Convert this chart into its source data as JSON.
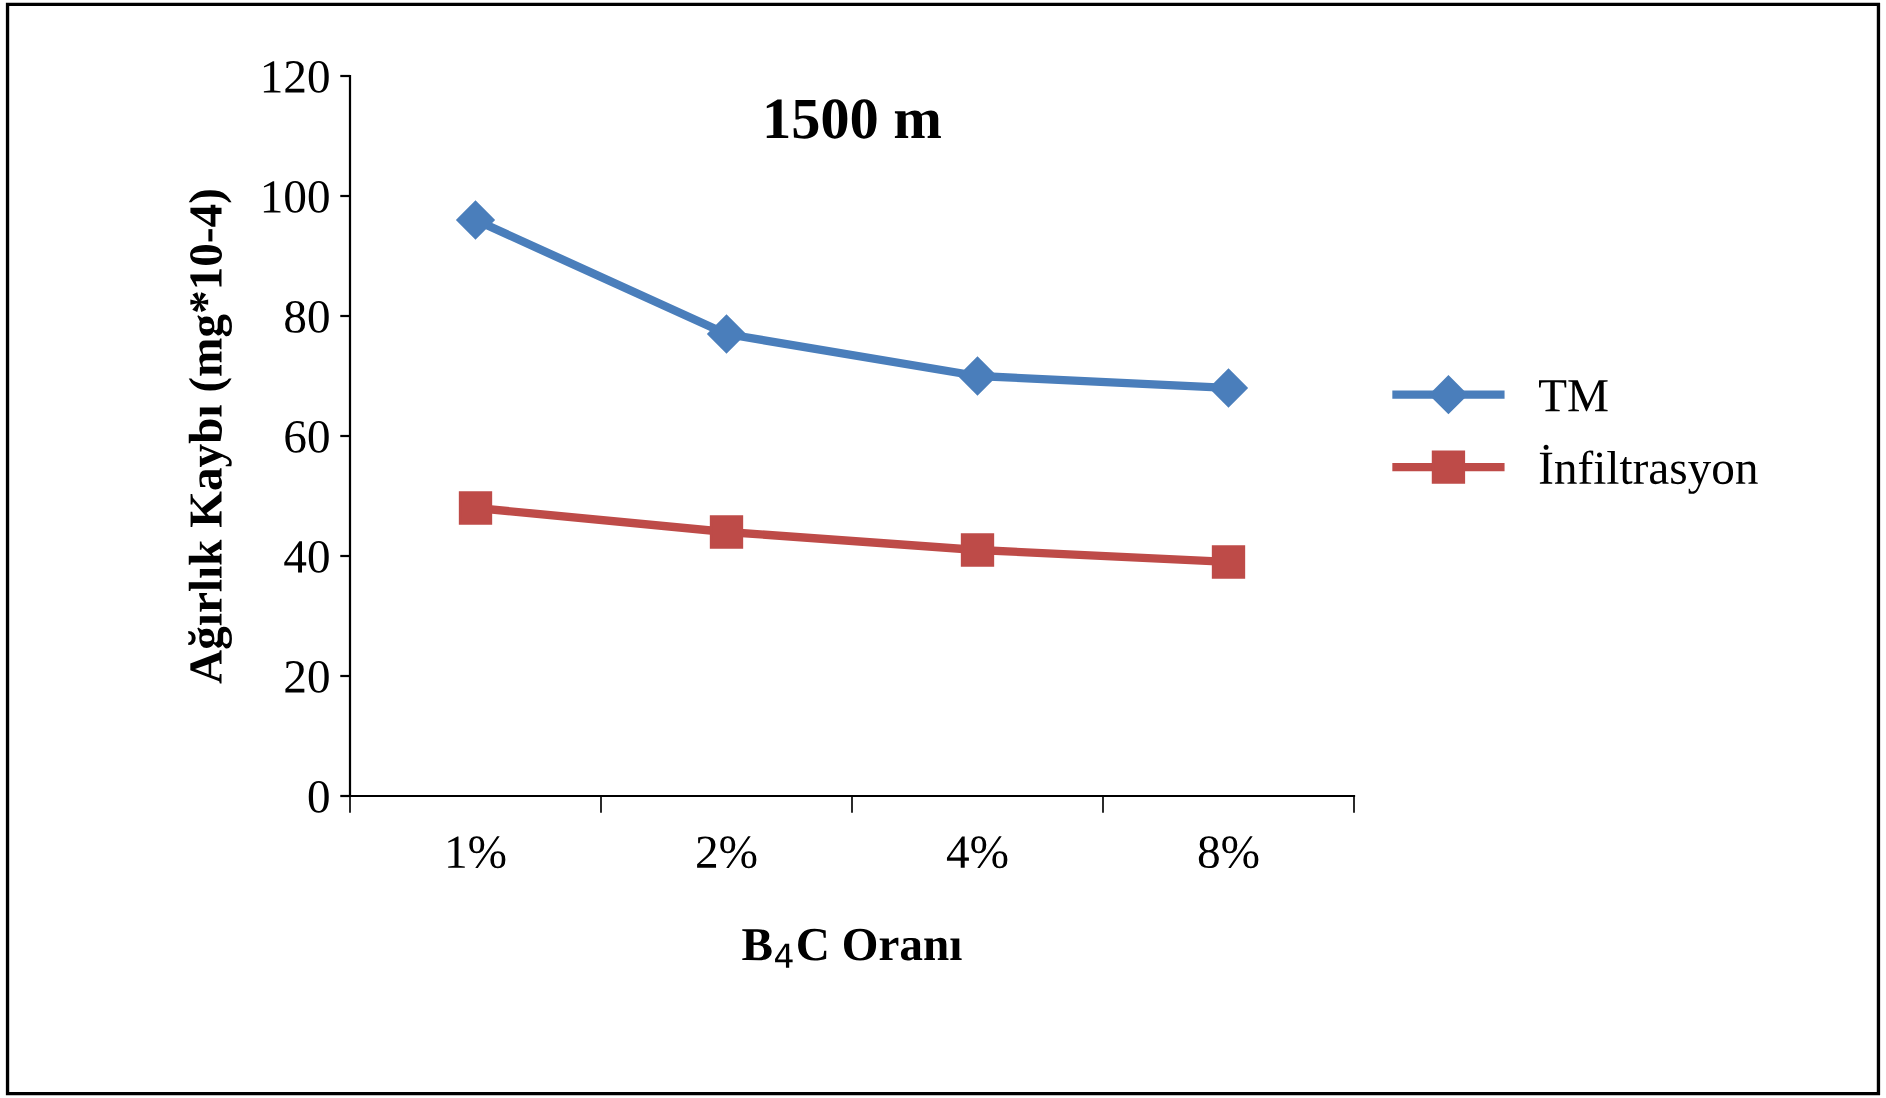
{
  "chart_data": {
    "type": "line",
    "title": "1500 m",
    "xlabel": "B$_{4}$C Oranı",
    "ylabel": "Ağırlık Kaybı (mg*10-4)",
    "categories": [
      "1%",
      "2%",
      "4%",
      "8%"
    ],
    "series": [
      {
        "name": "TM",
        "color": "#4a7ebb",
        "marker": "diamond",
        "values": [
          96,
          77,
          70,
          68
        ]
      },
      {
        "name": "İnfiltrasyon",
        "color": "#be4b48",
        "marker": "square",
        "values": [
          48,
          44,
          41,
          39
        ]
      }
    ],
    "ylim": [
      0,
      120
    ],
    "yticks": [
      0,
      20,
      40,
      60,
      80,
      100,
      120
    ],
    "grid": false,
    "legend": "right"
  }
}
